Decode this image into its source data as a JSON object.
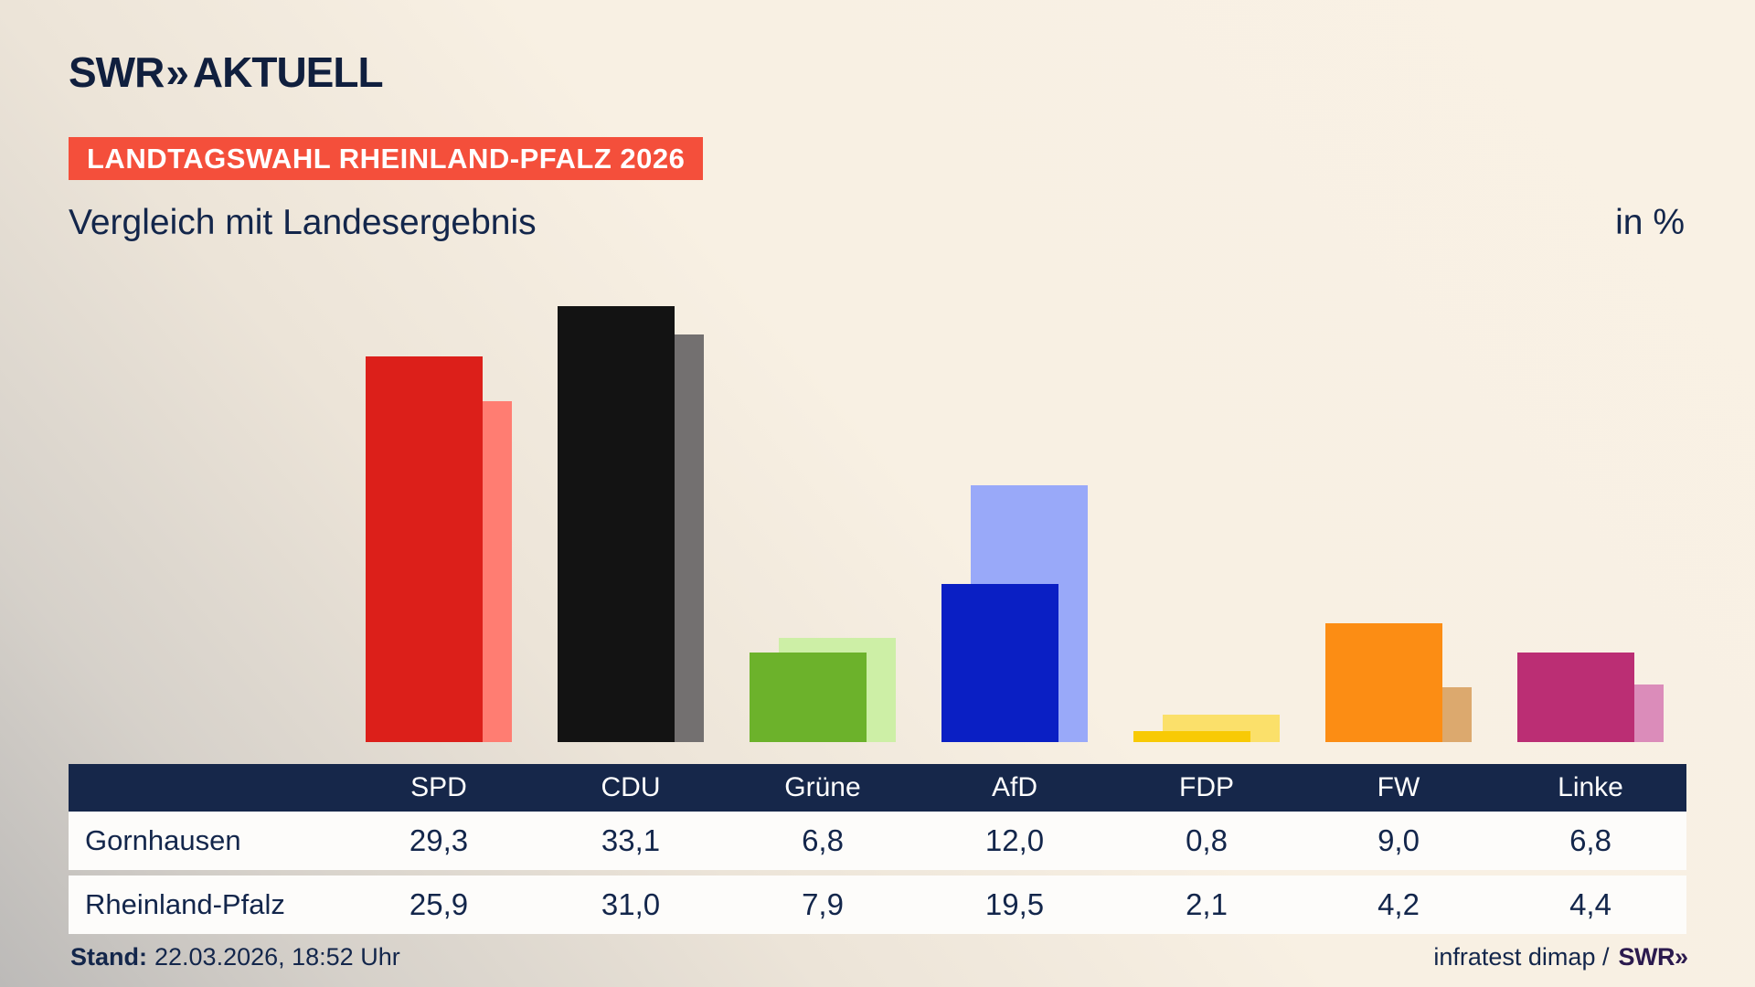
{
  "header": {
    "logo_brand": "SWR",
    "logo_chevrons": "»",
    "logo_name": "AKTUELL",
    "badge": "LANDTAGSWAHL RHEINLAND-PFALZ 2026",
    "title": "Vergleich mit Landesergebnis",
    "unit_label": "in %"
  },
  "chart_data": {
    "type": "bar",
    "categories": [
      "SPD",
      "CDU",
      "Grüne",
      "AfD",
      "FDP",
      "FW",
      "Linke"
    ],
    "series": [
      {
        "name": "Gornhausen",
        "values": [
          29.3,
          33.1,
          6.8,
          12.0,
          0.8,
          9.0,
          6.8
        ]
      },
      {
        "name": "Rheinland-Pfalz",
        "values": [
          25.9,
          31.0,
          7.9,
          19.5,
          2.1,
          4.2,
          4.4
        ]
      }
    ],
    "title": "Vergleich mit Landesergebnis",
    "xlabel": "",
    "ylabel": "in %",
    "ylim": [
      0,
      34.7
    ],
    "grid": false,
    "legend_position": "table-below",
    "value_format": "comma-decimal",
    "colors": {
      "gornhausen": [
        "#dc1f1a",
        "#131313",
        "#6cb22b",
        "#0a1fc4",
        "#f8ca05",
        "#fc8d14",
        "#bb2e74"
      ],
      "rheinland_pfalz": [
        "#ff7d72",
        "#737070",
        "#cdefa6",
        "#99a9f9",
        "#fbe06a",
        "#dca96e",
        "#db8cba"
      ]
    }
  },
  "table": {
    "corner_label": "",
    "columns": [
      "SPD",
      "CDU",
      "Grüne",
      "AfD",
      "FDP",
      "FW",
      "Linke"
    ],
    "row_labels": [
      "Gornhausen",
      "Rheinland-Pfalz"
    ],
    "rows": [
      [
        "29,3",
        "33,1",
        "6,8",
        "12,0",
        "0,8",
        "9,0",
        "6,8"
      ],
      [
        "25,9",
        "31,0",
        "7,9",
        "19,5",
        "2,1",
        "4,2",
        "4,4"
      ]
    ],
    "header_bg": "#16274a",
    "row_bg": "#fdfcfa"
  },
  "footer": {
    "stand_label": "Stand:",
    "stand_value": "22.03.2026, 18:52 Uhr",
    "source_text": "infratest dimap /",
    "source_logo_brand": "SWR",
    "source_logo_chevrons": "»"
  },
  "colors": {
    "background_beige": "#f8f0e3",
    "background_gray": "#bcbab8",
    "navy_text": "#13264b",
    "badge_red": "#f44f3b",
    "logo_navy": "#101f3e",
    "source_logo_purple": "#2b1a4e"
  }
}
